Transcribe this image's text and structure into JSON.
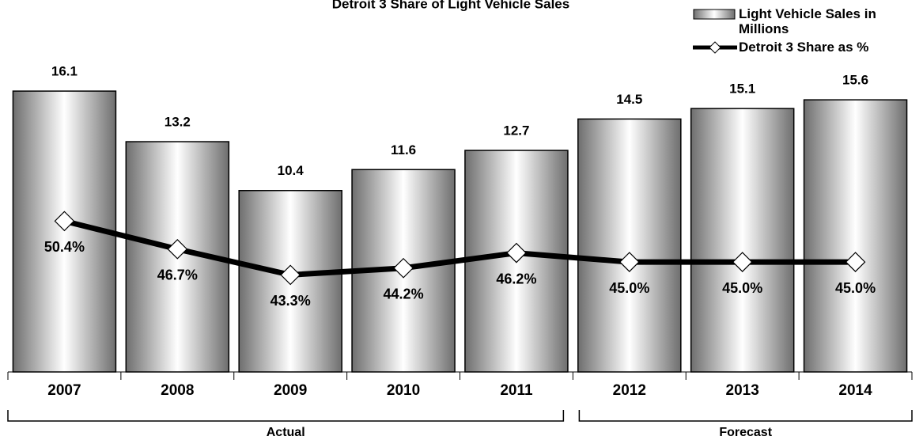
{
  "chart_data": {
    "type": "bar+line",
    "title": "Detroit 3 Share of Light Vehicle Sales",
    "categories": [
      "2007",
      "2008",
      "2009",
      "2010",
      "2011",
      "2012",
      "2013",
      "2014"
    ],
    "series": [
      {
        "name": "Light Vehicle Sales in Millions",
        "type": "bar",
        "color": "#b0b0b0",
        "values": [
          16.1,
          13.2,
          10.4,
          11.6,
          12.7,
          14.5,
          15.1,
          15.6
        ]
      },
      {
        "name": "Detroit 3 Share as %",
        "type": "line",
        "axis": "y2",
        "color": "#000000",
        "values": [
          50.4,
          46.7,
          43.3,
          44.2,
          46.2,
          45.0,
          45.0,
          45.0
        ],
        "value_labels": [
          "50.4%",
          "46.7%",
          "43.3%",
          "44.2%",
          "46.2%",
          "45.0%",
          "45.0%",
          "45.0%"
        ]
      }
    ],
    "ylim": [
      0,
      18.6
    ],
    "y2lim": [
      30.5,
      73.3
    ],
    "annotations": [
      {
        "text": "Actual",
        "from": "2007",
        "to": "2011"
      },
      {
        "text": "Forecast",
        "from": "2012",
        "to": "2014"
      }
    ],
    "legend": "top-right"
  }
}
